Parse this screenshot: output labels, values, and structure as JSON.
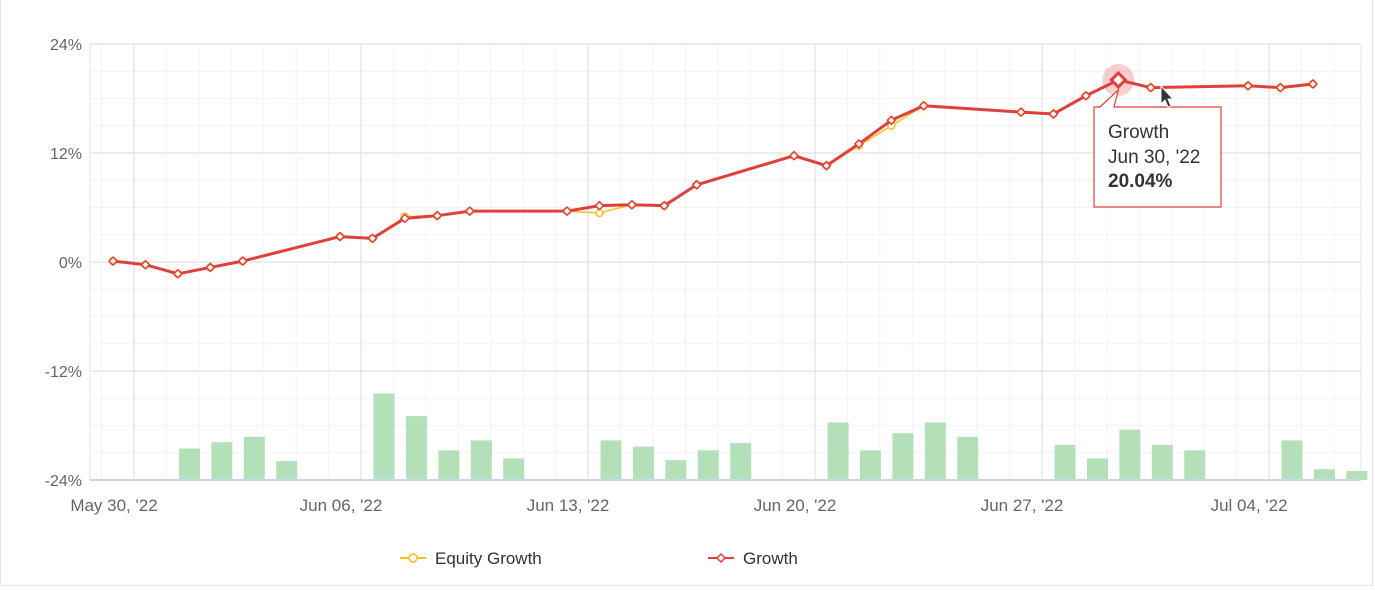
{
  "chart_data": {
    "type": "line",
    "grid": true,
    "legend_placement": "bottom-center",
    "ylim": [
      -24,
      24
    ],
    "y_ticks": [
      "24%",
      "12%",
      "0%",
      "-12%",
      "-24%"
    ],
    "x_tick_labels": [
      "May 30, '22",
      "Jun 06, '22",
      "Jun 13, '22",
      "Jun 20, '22",
      "Jun 27, '22",
      "Jul 04, '22"
    ],
    "dates": [
      "2022-05-30",
      "2022-05-31",
      "2022-06-01",
      "2022-06-02",
      "2022-06-03",
      "2022-06-06",
      "2022-06-07",
      "2022-06-08",
      "2022-06-09",
      "2022-06-10",
      "2022-06-13",
      "2022-06-14",
      "2022-06-15",
      "2022-06-16",
      "2022-06-17",
      "2022-06-20",
      "2022-06-21",
      "2022-06-22",
      "2022-06-23",
      "2022-06-24",
      "2022-06-27",
      "2022-06-28",
      "2022-06-29",
      "2022-06-30",
      "2022-07-01",
      "2022-07-04",
      "2022-07-05",
      "2022-07-06"
    ],
    "series": [
      {
        "name": "Growth",
        "color": "#e0403b",
        "values": [
          0.1,
          -0.3,
          -1.3,
          -0.6,
          0.1,
          2.8,
          2.6,
          4.8,
          5.1,
          5.6,
          5.6,
          6.2,
          6.3,
          6.2,
          8.5,
          11.7,
          10.6,
          13.0,
          15.6,
          17.2,
          16.5,
          16.3,
          18.3,
          20.04,
          19.2,
          19.4,
          19.2,
          19.6
        ]
      },
      {
        "name": "Equity Growth",
        "color": "#f5c022",
        "values": [
          0.1,
          -0.3,
          -1.3,
          -0.6,
          0.1,
          2.8,
          2.6,
          5.0,
          5.1,
          5.6,
          5.6,
          5.4,
          6.3,
          6.2,
          8.5,
          11.7,
          10.6,
          12.8,
          15.0,
          17.2,
          16.5,
          16.3,
          18.3,
          20.04,
          19.2,
          19.4,
          19.2,
          19.6
        ]
      }
    ],
    "bars": {
      "color": "#b3e0b8",
      "values": [
        3.5,
        4.2,
        4.8,
        2.1,
        9.6,
        7.1,
        3.3,
        4.4,
        2.4,
        4.4,
        3.7,
        2.2,
        3.3,
        4.1,
        6.4,
        3.3,
        5.2,
        6.4,
        4.8,
        3.9,
        2.4,
        5.6,
        3.9,
        3.3,
        4.4,
        1.2,
        1.0
      ],
      "dates": [
        "2022-05-31",
        "2022-06-01",
        "2022-06-02",
        "2022-06-03",
        "2022-06-06",
        "2022-06-07",
        "2022-06-08",
        "2022-06-09",
        "2022-06-10",
        "2022-06-13",
        "2022-06-14",
        "2022-06-15",
        "2022-06-16",
        "2022-06-17",
        "2022-06-20",
        "2022-06-21",
        "2022-06-22",
        "2022-06-23",
        "2022-06-24",
        "2022-06-27",
        "2022-06-28",
        "2022-06-29",
        "2022-06-30",
        "2022-07-01",
        "2022-07-04",
        "2022-07-05",
        "2022-07-06"
      ]
    },
    "legend": [
      "Equity Growth",
      "Growth"
    ],
    "tooltip": {
      "series": "Growth",
      "date": "Jun 30, '22",
      "value": "20.04%",
      "index": 23
    }
  }
}
